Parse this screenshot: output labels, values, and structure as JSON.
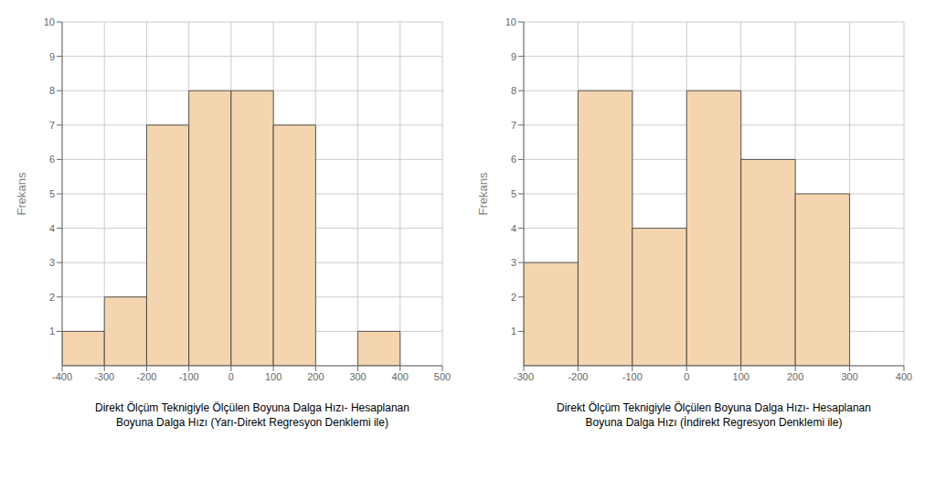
{
  "chart_data": [
    {
      "type": "histogram",
      "bins": [
        -400,
        -300,
        -200,
        -100,
        0,
        100,
        200,
        300,
        400,
        500
      ],
      "values": [
        1,
        2,
        7,
        8,
        8,
        7,
        0,
        1,
        0
      ],
      "xlim": [
        -400,
        500
      ],
      "xticks": [
        -400,
        -300,
        -200,
        -100,
        0,
        100,
        200,
        300,
        400,
        500
      ],
      "ylim": [
        0,
        10
      ],
      "yticks": [
        1,
        2,
        3,
        4,
        5,
        6,
        7,
        8,
        9,
        10
      ],
      "xlabel": "Direkt Ölçüm Teknigiyle Ölçülen Boyuna Dalga Hızı- Hesaplanan\nBoyuna Dalga Hızı (Yarı-Direkt Regresyon Denklemi ile)",
      "ylabel": "Frekans",
      "color": "#f5d5b0",
      "grid": true
    },
    {
      "type": "histogram",
      "bins": [
        -300,
        -200,
        -100,
        0,
        100,
        200,
        300,
        400
      ],
      "values": [
        3,
        8,
        4,
        8,
        6,
        5,
        0
      ],
      "xlim": [
        -300,
        400
      ],
      "xticks": [
        -300,
        -200,
        -100,
        0,
        100,
        200,
        300,
        400
      ],
      "ylim": [
        0,
        10
      ],
      "yticks": [
        1,
        2,
        3,
        4,
        5,
        6,
        7,
        8,
        9,
        10
      ],
      "xlabel": "Direkt Ölçüm Teknigiyle Ölçülen Boyuna Dalga Hızı- Hesaplanan\nBoyuna Dalga Hızı (İndirekt Regresyon Denklemi ile)",
      "ylabel": "Frekans",
      "color": "#f5d5b0",
      "grid": true
    }
  ]
}
